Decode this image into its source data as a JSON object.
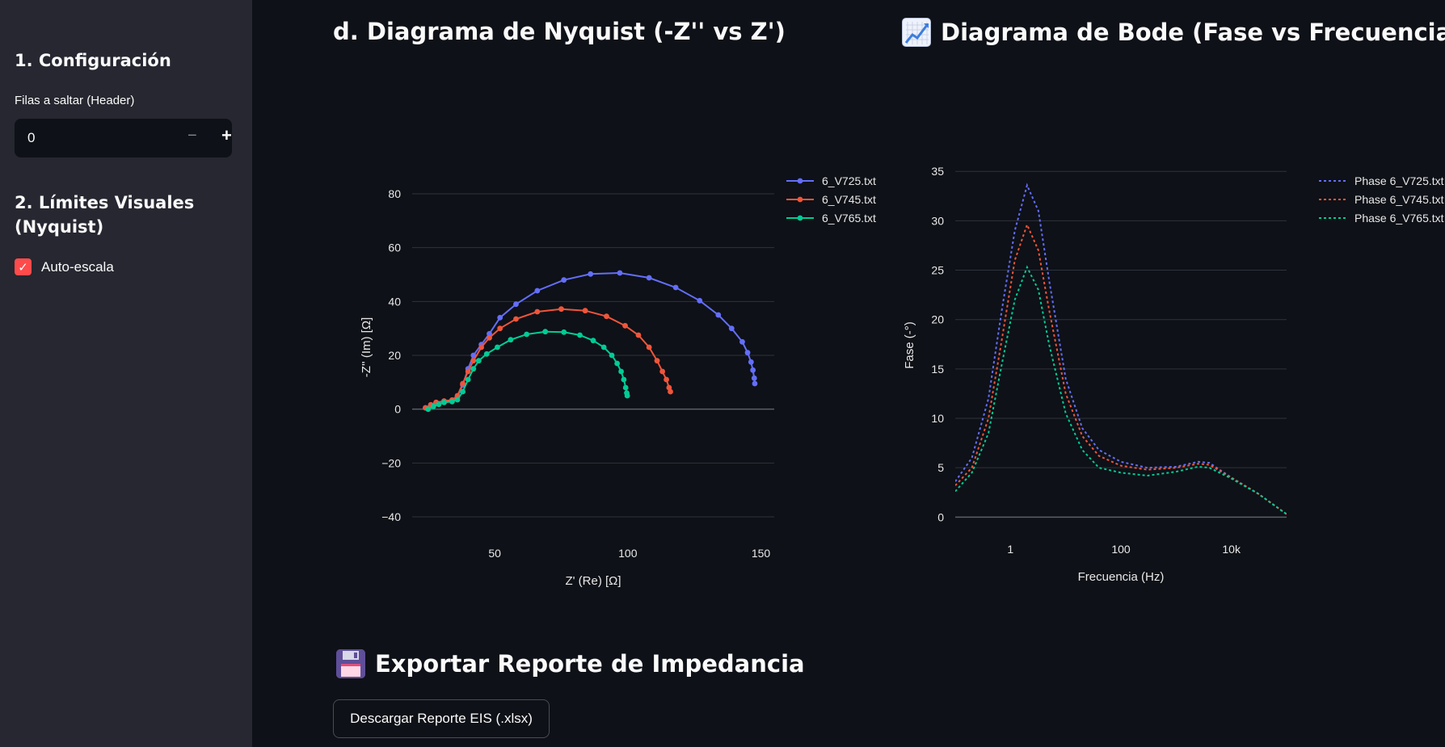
{
  "sidebar": {
    "section1_title": "1. Configuración",
    "skip_label": "Filas a saltar (Header)",
    "skip_value": "0",
    "minus": "−",
    "plus": "+",
    "section2_title": "2. Límites Visuales (Nyquist)",
    "autoscale_label": "Auto-escala",
    "autoscale_checked": true
  },
  "nyquist": {
    "heading": "d. Diagrama de Nyquist (-Z'' vs Z')"
  },
  "bode": {
    "heading": "Diagrama de Bode (Fase vs Frecuencia)",
    "heading_icon": "chart-increasing-icon"
  },
  "export": {
    "heading": "Exportar Reporte de Impedancia",
    "heading_icon": "floppy-disk-icon",
    "button_label": "Descargar Reporte EIS (.xlsx)"
  },
  "chart_data": [
    {
      "type": "line",
      "title": "",
      "xlabel": "Z' (Re) [Ω]",
      "ylabel": "-Z'' (Im) [Ω]",
      "xlim": [
        19,
        155
      ],
      "ylim": [
        -46,
        92
      ],
      "xticks": [
        50,
        100,
        150
      ],
      "yticks": [
        -40,
        -20,
        0,
        20,
        40,
        60,
        80
      ],
      "grid": true,
      "legend": "top-right",
      "markers": true,
      "series": [
        {
          "name": "6_V725.txt",
          "color": "#636efa",
          "points": [
            [
              24,
              0.5
            ],
            [
              26,
              1.6
            ],
            [
              28,
              2.5
            ],
            [
              31,
              3.0
            ],
            [
              34,
              3.3
            ],
            [
              36,
              4.5
            ],
            [
              38,
              9
            ],
            [
              40,
              15
            ],
            [
              42,
              20
            ],
            [
              45,
              24
            ],
            [
              48,
              28
            ],
            [
              52,
              34
            ],
            [
              58,
              39
            ],
            [
              66,
              44
            ],
            [
              76,
              48
            ],
            [
              86,
              50.2
            ],
            [
              97,
              50.6
            ],
            [
              108,
              48.8
            ],
            [
              118,
              45.2
            ],
            [
              127,
              40.3
            ],
            [
              134,
              35
            ],
            [
              139,
              30
            ],
            [
              143,
              25
            ],
            [
              145,
              21
            ],
            [
              146.3,
              17.5
            ],
            [
              147,
              14.5
            ],
            [
              147.5,
              11.5
            ],
            [
              147.7,
              9.5
            ]
          ]
        },
        {
          "name": "6_V745.txt",
          "color": "#ef553b",
          "points": [
            [
              24,
              0.5
            ],
            [
              26,
              1.6
            ],
            [
              28,
              2.5
            ],
            [
              31,
              3.0
            ],
            [
              34,
              3.4
            ],
            [
              36,
              5
            ],
            [
              38,
              9.5
            ],
            [
              40,
              14
            ],
            [
              42,
              18
            ],
            [
              45,
              23
            ],
            [
              48,
              26.5
            ],
            [
              52,
              30
            ],
            [
              58,
              33.5
            ],
            [
              66,
              36.2
            ],
            [
              75,
              37.2
            ],
            [
              84,
              36.6
            ],
            [
              92,
              34.5
            ],
            [
              99,
              31
            ],
            [
              104,
              27.5
            ],
            [
              108,
              23
            ],
            [
              111,
              18
            ],
            [
              113,
              14
            ],
            [
              114.5,
              11
            ],
            [
              115.5,
              8
            ],
            [
              116,
              6.5
            ]
          ]
        },
        {
          "name": "6_V765.txt",
          "color": "#00cc96",
          "points": [
            [
              25,
              0
            ],
            [
              27,
              1.0
            ],
            [
              29,
              1.8
            ],
            [
              31,
              2.5
            ],
            [
              34,
              2.8
            ],
            [
              36,
              3.5
            ],
            [
              38,
              6.5
            ],
            [
              40,
              11
            ],
            [
              42,
              15
            ],
            [
              44,
              18
            ],
            [
              47,
              20.5
            ],
            [
              51,
              23
            ],
            [
              56,
              25.8
            ],
            [
              62,
              27.8
            ],
            [
              69,
              28.8
            ],
            [
              76,
              28.6
            ],
            [
              82,
              27.5
            ],
            [
              87,
              25.5
            ],
            [
              91,
              23
            ],
            [
              94,
              20
            ],
            [
              96,
              17
            ],
            [
              97.5,
              14
            ],
            [
              98.5,
              11
            ],
            [
              99.2,
              8
            ],
            [
              99.6,
              6
            ],
            [
              99.8,
              5
            ]
          ]
        }
      ]
    },
    {
      "type": "line",
      "title": "",
      "xlabel": "Frecuencia (Hz)",
      "ylabel": "Fase (-°)",
      "x_scale": "log",
      "xlim": [
        0.1,
        100000
      ],
      "ylim": [
        -1.2,
        36
      ],
      "xticks": [
        {
          "value": 1,
          "label": "1"
        },
        {
          "value": 100,
          "label": "100"
        },
        {
          "value": 10000,
          "label": "10k"
        }
      ],
      "yticks": [
        0,
        5,
        10,
        15,
        20,
        25,
        30,
        35
      ],
      "grid": true,
      "legend": "top-right",
      "line_style": "dotted",
      "series": [
        {
          "name": "Phase 6_V725.txt",
          "color": "#636efa",
          "points": [
            [
              0.1,
              3.6
            ],
            [
              0.2,
              6
            ],
            [
              0.4,
              12
            ],
            [
              0.7,
              21
            ],
            [
              1.2,
              29
            ],
            [
              2,
              33.6
            ],
            [
              3.2,
              31
            ],
            [
              5,
              24
            ],
            [
              10,
              14
            ],
            [
              20,
              9
            ],
            [
              40,
              6.8
            ],
            [
              100,
              5.6
            ],
            [
              300,
              5.0
            ],
            [
              1000,
              5.1
            ],
            [
              2500,
              5.6
            ],
            [
              4000,
              5.5
            ],
            [
              10000,
              4.0
            ],
            [
              30000,
              2.4
            ],
            [
              100000,
              0.3
            ]
          ]
        },
        {
          "name": "Phase 6_V745.txt",
          "color": "#ef553b",
          "points": [
            [
              0.1,
              3.2
            ],
            [
              0.2,
              5
            ],
            [
              0.4,
              10
            ],
            [
              0.7,
              18
            ],
            [
              1.2,
              26
            ],
            [
              2,
              29.6
            ],
            [
              3.2,
              27
            ],
            [
              5,
              21
            ],
            [
              10,
              12.5
            ],
            [
              20,
              8.2
            ],
            [
              40,
              6.2
            ],
            [
              100,
              5.2
            ],
            [
              300,
              4.8
            ],
            [
              1000,
              5.0
            ],
            [
              2500,
              5.4
            ],
            [
              4000,
              5.3
            ],
            [
              10000,
              4.0
            ],
            [
              30000,
              2.4
            ],
            [
              100000,
              0.3
            ]
          ]
        },
        {
          "name": "Phase 6_V765.txt",
          "color": "#00cc96",
          "points": [
            [
              0.1,
              2.6
            ],
            [
              0.2,
              4.5
            ],
            [
              0.4,
              8.5
            ],
            [
              0.7,
              15.5
            ],
            [
              1.2,
              22
            ],
            [
              2,
              25.3
            ],
            [
              3.2,
              23
            ],
            [
              5,
              17.5
            ],
            [
              10,
              10.5
            ],
            [
              20,
              6.8
            ],
            [
              40,
              5.0
            ],
            [
              100,
              4.5
            ],
            [
              300,
              4.2
            ],
            [
              1000,
              4.6
            ],
            [
              2500,
              5.1
            ],
            [
              4000,
              5.0
            ],
            [
              10000,
              3.9
            ],
            [
              30000,
              2.4
            ],
            [
              100000,
              0.3
            ]
          ]
        }
      ]
    }
  ]
}
